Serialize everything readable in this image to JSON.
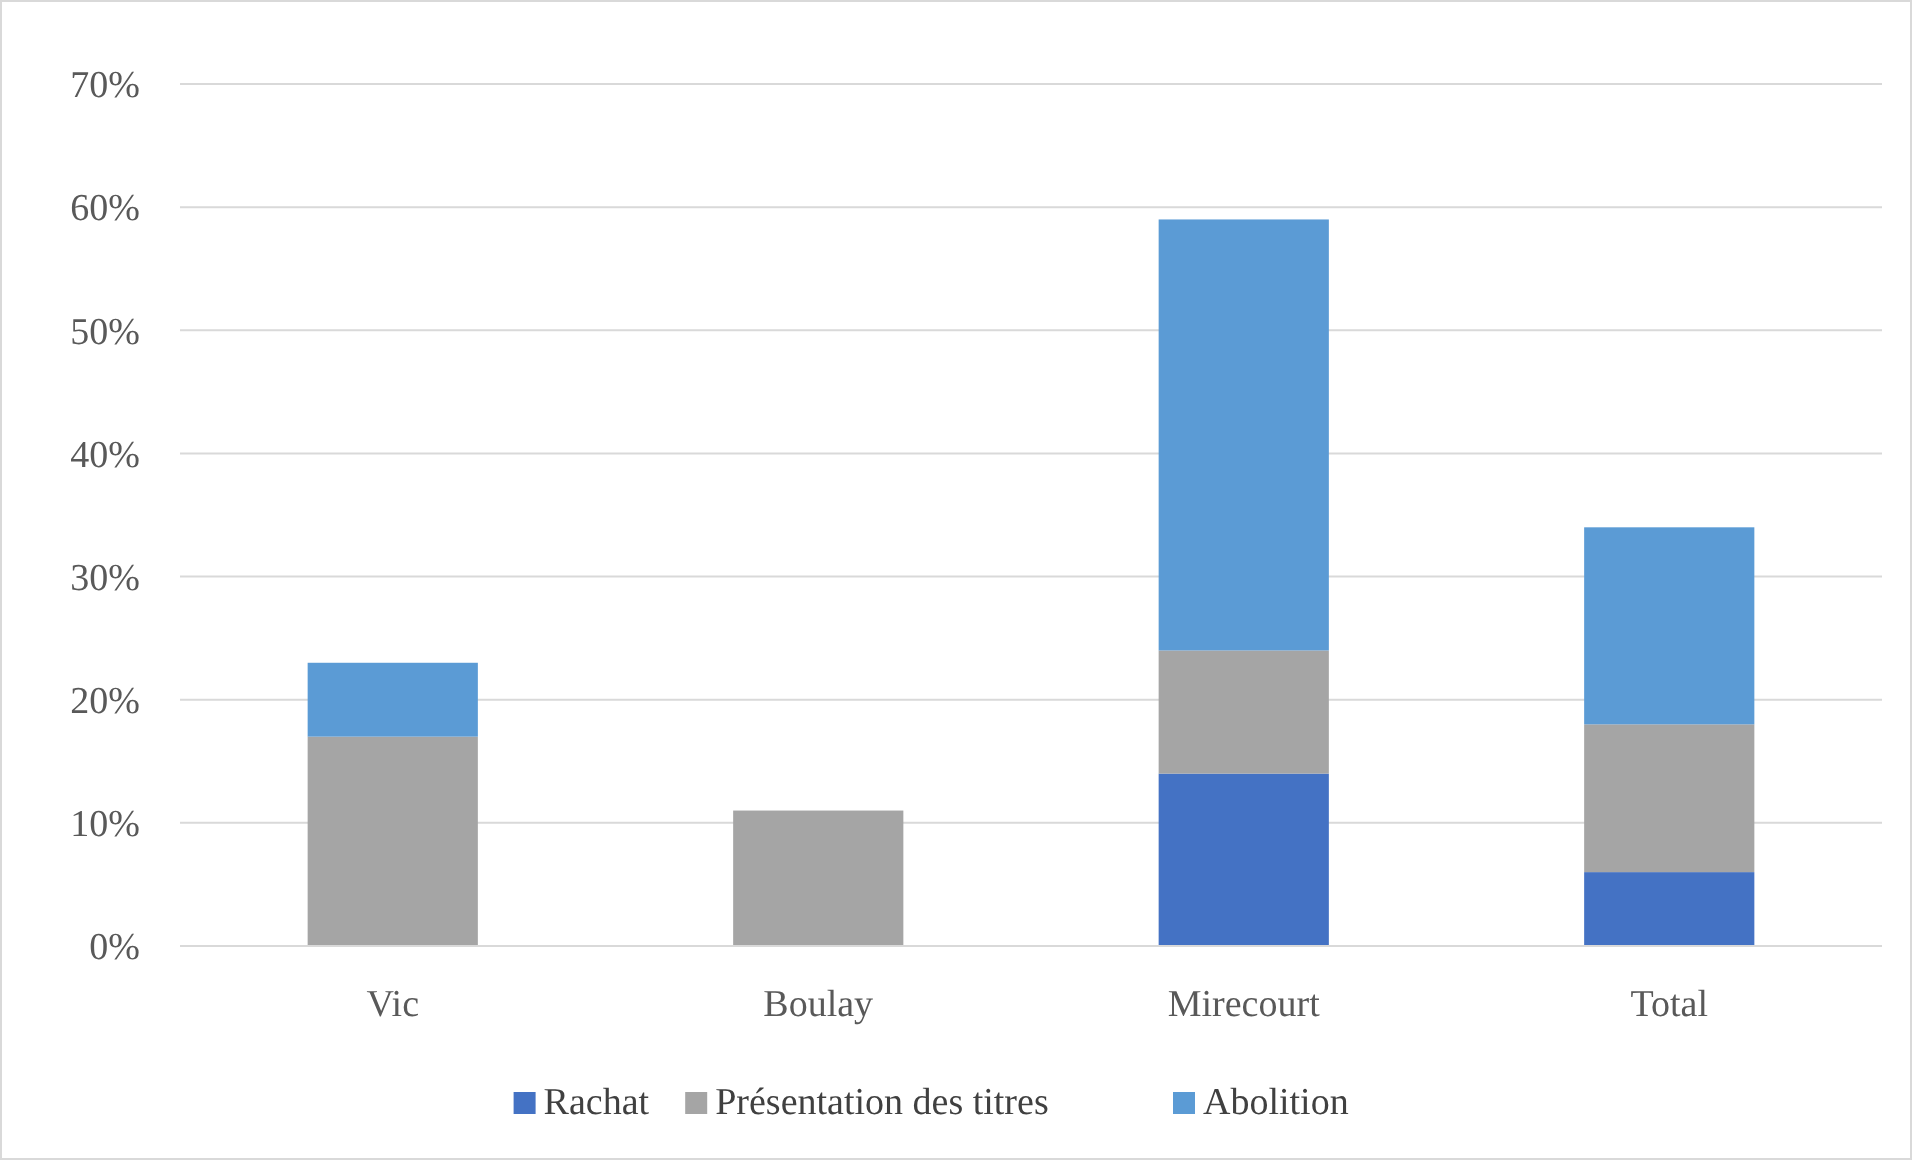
{
  "chart_data": {
    "type": "bar",
    "stacked": true,
    "categories": [
      "Vic",
      "Boulay",
      "Mirecourt",
      "Total"
    ],
    "series": [
      {
        "name": "Rachat",
        "color": "#4472c4",
        "values": [
          0,
          0,
          14,
          6
        ]
      },
      {
        "name": "Présentation des titres",
        "color": "#a5a5a5",
        "values": [
          17,
          11,
          10,
          12
        ]
      },
      {
        "name": "Abolition",
        "color": "#5b9bd5",
        "values": [
          6,
          0,
          35,
          16
        ]
      }
    ],
    "ylim": [
      0,
      70
    ],
    "yticks": [
      {
        "value": 0,
        "label": "0%"
      },
      {
        "value": 10,
        "label": "10%"
      },
      {
        "value": 20,
        "label": "20%"
      },
      {
        "value": 30,
        "label": "30%"
      },
      {
        "value": 40,
        "label": "40%"
      },
      {
        "value": 50,
        "label": "50%"
      },
      {
        "value": 60,
        "label": "60%"
      },
      {
        "value": 70,
        "label": "70%"
      }
    ],
    "grid": "y",
    "legend": "bottom"
  }
}
